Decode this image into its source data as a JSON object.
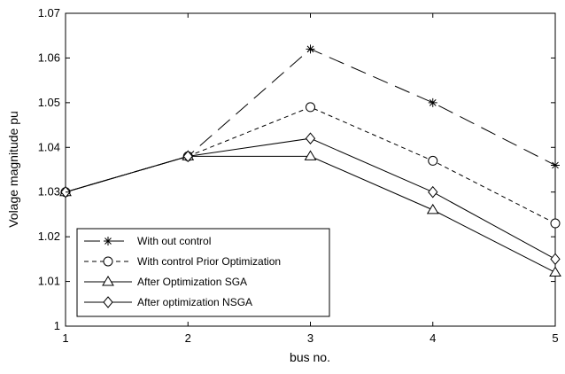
{
  "chart_data": {
    "type": "line",
    "title": "",
    "xlabel": "bus no.",
    "ylabel": "Volage magnitude pu",
    "x": [
      1,
      2,
      3,
      4,
      5
    ],
    "xlim": [
      1,
      5
    ],
    "ylim": [
      1.0,
      1.07
    ],
    "x_ticks": [
      1,
      2,
      3,
      4,
      5
    ],
    "y_ticks": [
      1,
      1.01,
      1.02,
      1.03,
      1.04,
      1.05,
      1.06,
      1.07
    ],
    "grid": false,
    "legend_position": "bottom-left",
    "series": [
      {
        "name": "With out control",
        "values": [
          1.03,
          1.038,
          1.062,
          1.05,
          1.036
        ],
        "marker": "asterisk",
        "line_style": "long-dash",
        "color": "#000000"
      },
      {
        "name": "With control Prior Optimization",
        "values": [
          1.03,
          1.038,
          1.049,
          1.037,
          1.023
        ],
        "marker": "circle",
        "line_style": "short-dash",
        "color": "#000000"
      },
      {
        "name": "After Optimization SGA",
        "values": [
          1.03,
          1.038,
          1.038,
          1.026,
          1.012
        ],
        "marker": "triangle",
        "line_style": "solid",
        "color": "#000000"
      },
      {
        "name": "After optimization NSGA",
        "values": [
          1.03,
          1.038,
          1.042,
          1.03,
          1.015
        ],
        "marker": "diamond",
        "line_style": "solid",
        "color": "#000000"
      }
    ]
  }
}
